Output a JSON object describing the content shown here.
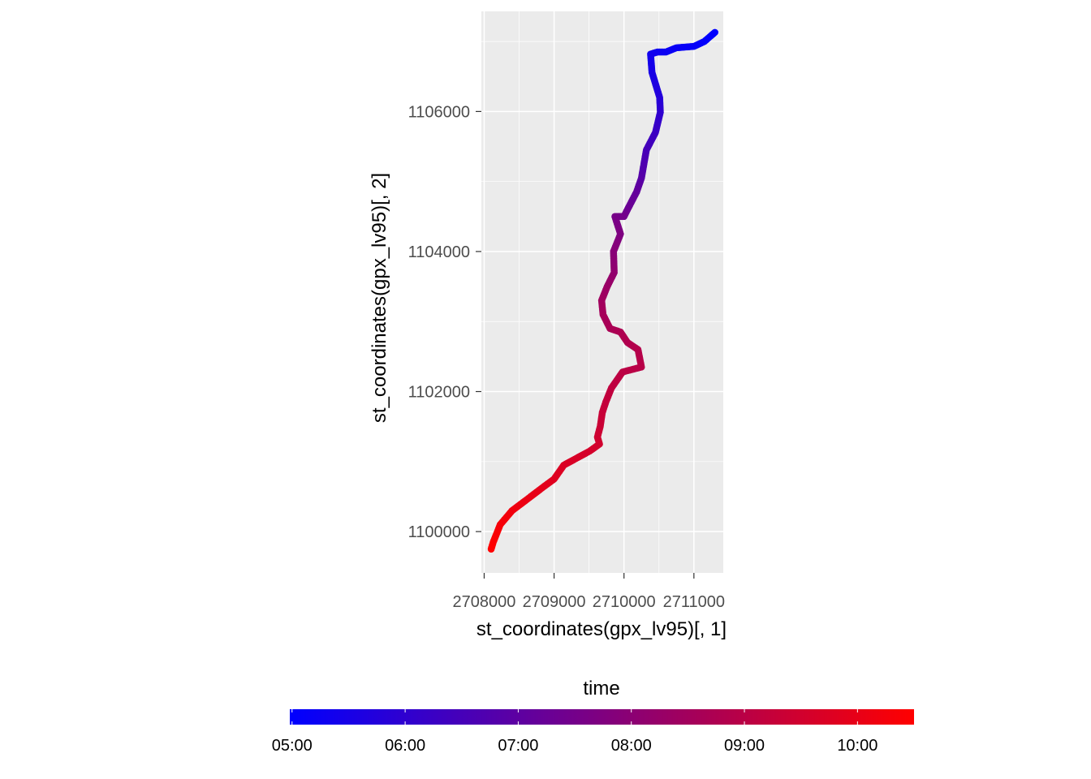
{
  "chart_data": {
    "type": "scatter",
    "title": "",
    "xlabel": "st_coordinates(gpx_lv95)[, 1]",
    "ylabel": "st_coordinates(gpx_lv95)[, 2]",
    "xlim": [
      2707960,
      2711420
    ],
    "ylim": [
      1099410,
      1107430
    ],
    "x_ticks": [
      2708000,
      2709000,
      2710000,
      2711000
    ],
    "x_tick_labels": [
      "2708000",
      "2709000",
      "2710000",
      "2711000"
    ],
    "y_ticks": [
      1100000,
      1102000,
      1104000,
      1106000
    ],
    "y_tick_labels": [
      "1100000",
      "1102000",
      "1104000",
      "1106000"
    ],
    "grid": true,
    "panel_background": "#ebebeb",
    "color_low": "#0000ff",
    "color_high": "#ff0000",
    "legend": {
      "title": "time",
      "position": "bottom",
      "breaks": [
        "05:00",
        "06:00",
        "07:00",
        "08:00",
        "09:00",
        "10:00"
      ],
      "break_hours": [
        5,
        6,
        7,
        8,
        9,
        10
      ],
      "range_hours": [
        4.98,
        10.5
      ]
    },
    "series": [
      {
        "x": [
          2711300,
          2711150,
          2711000,
          2710750,
          2710600,
          2710480,
          2710380,
          2710400,
          2710510,
          2710520,
          2710450,
          2710320,
          2710250,
          2710180,
          2710050,
          2710000,
          2709870,
          2709950,
          2709850,
          2709860,
          2709760,
          2709680,
          2709700,
          2709800,
          2709950,
          2710050,
          2710200,
          2710250,
          2709980,
          2709820,
          2709740,
          2709690,
          2709660,
          2709620,
          2709650,
          2709510,
          2709140,
          2709000,
          2708850,
          2708600,
          2708400,
          2708230,
          2708130,
          2708100
        ],
        "y": [
          1107130,
          1107000,
          1106930,
          1106910,
          1106850,
          1106850,
          1106820,
          1106560,
          1106200,
          1105990,
          1105700,
          1105450,
          1105050,
          1104850,
          1104600,
          1104500,
          1104500,
          1104250,
          1104000,
          1103700,
          1103500,
          1103300,
          1103100,
          1102900,
          1102850,
          1102700,
          1102600,
          1102350,
          1102280,
          1102050,
          1101850,
          1101700,
          1101500,
          1101350,
          1101250,
          1101150,
          1100950,
          1100750,
          1100640,
          1100450,
          1100300,
          1100100,
          1099850,
          1099750
        ],
        "time_hours": [
          4.98,
          5.04,
          5.1,
          5.16,
          5.22,
          5.28,
          5.33,
          5.5,
          5.75,
          5.98,
          6.25,
          6.5,
          6.85,
          7.1,
          7.3,
          7.45,
          7.55,
          7.7,
          7.9,
          8.1,
          8.3,
          8.45,
          8.55,
          8.65,
          8.72,
          8.8,
          8.87,
          8.95,
          9.03,
          9.12,
          9.2,
          9.27,
          9.35,
          9.43,
          9.5,
          9.57,
          9.7,
          9.8,
          9.9,
          10.05,
          10.18,
          10.3,
          10.42,
          10.5
        ]
      }
    ]
  }
}
